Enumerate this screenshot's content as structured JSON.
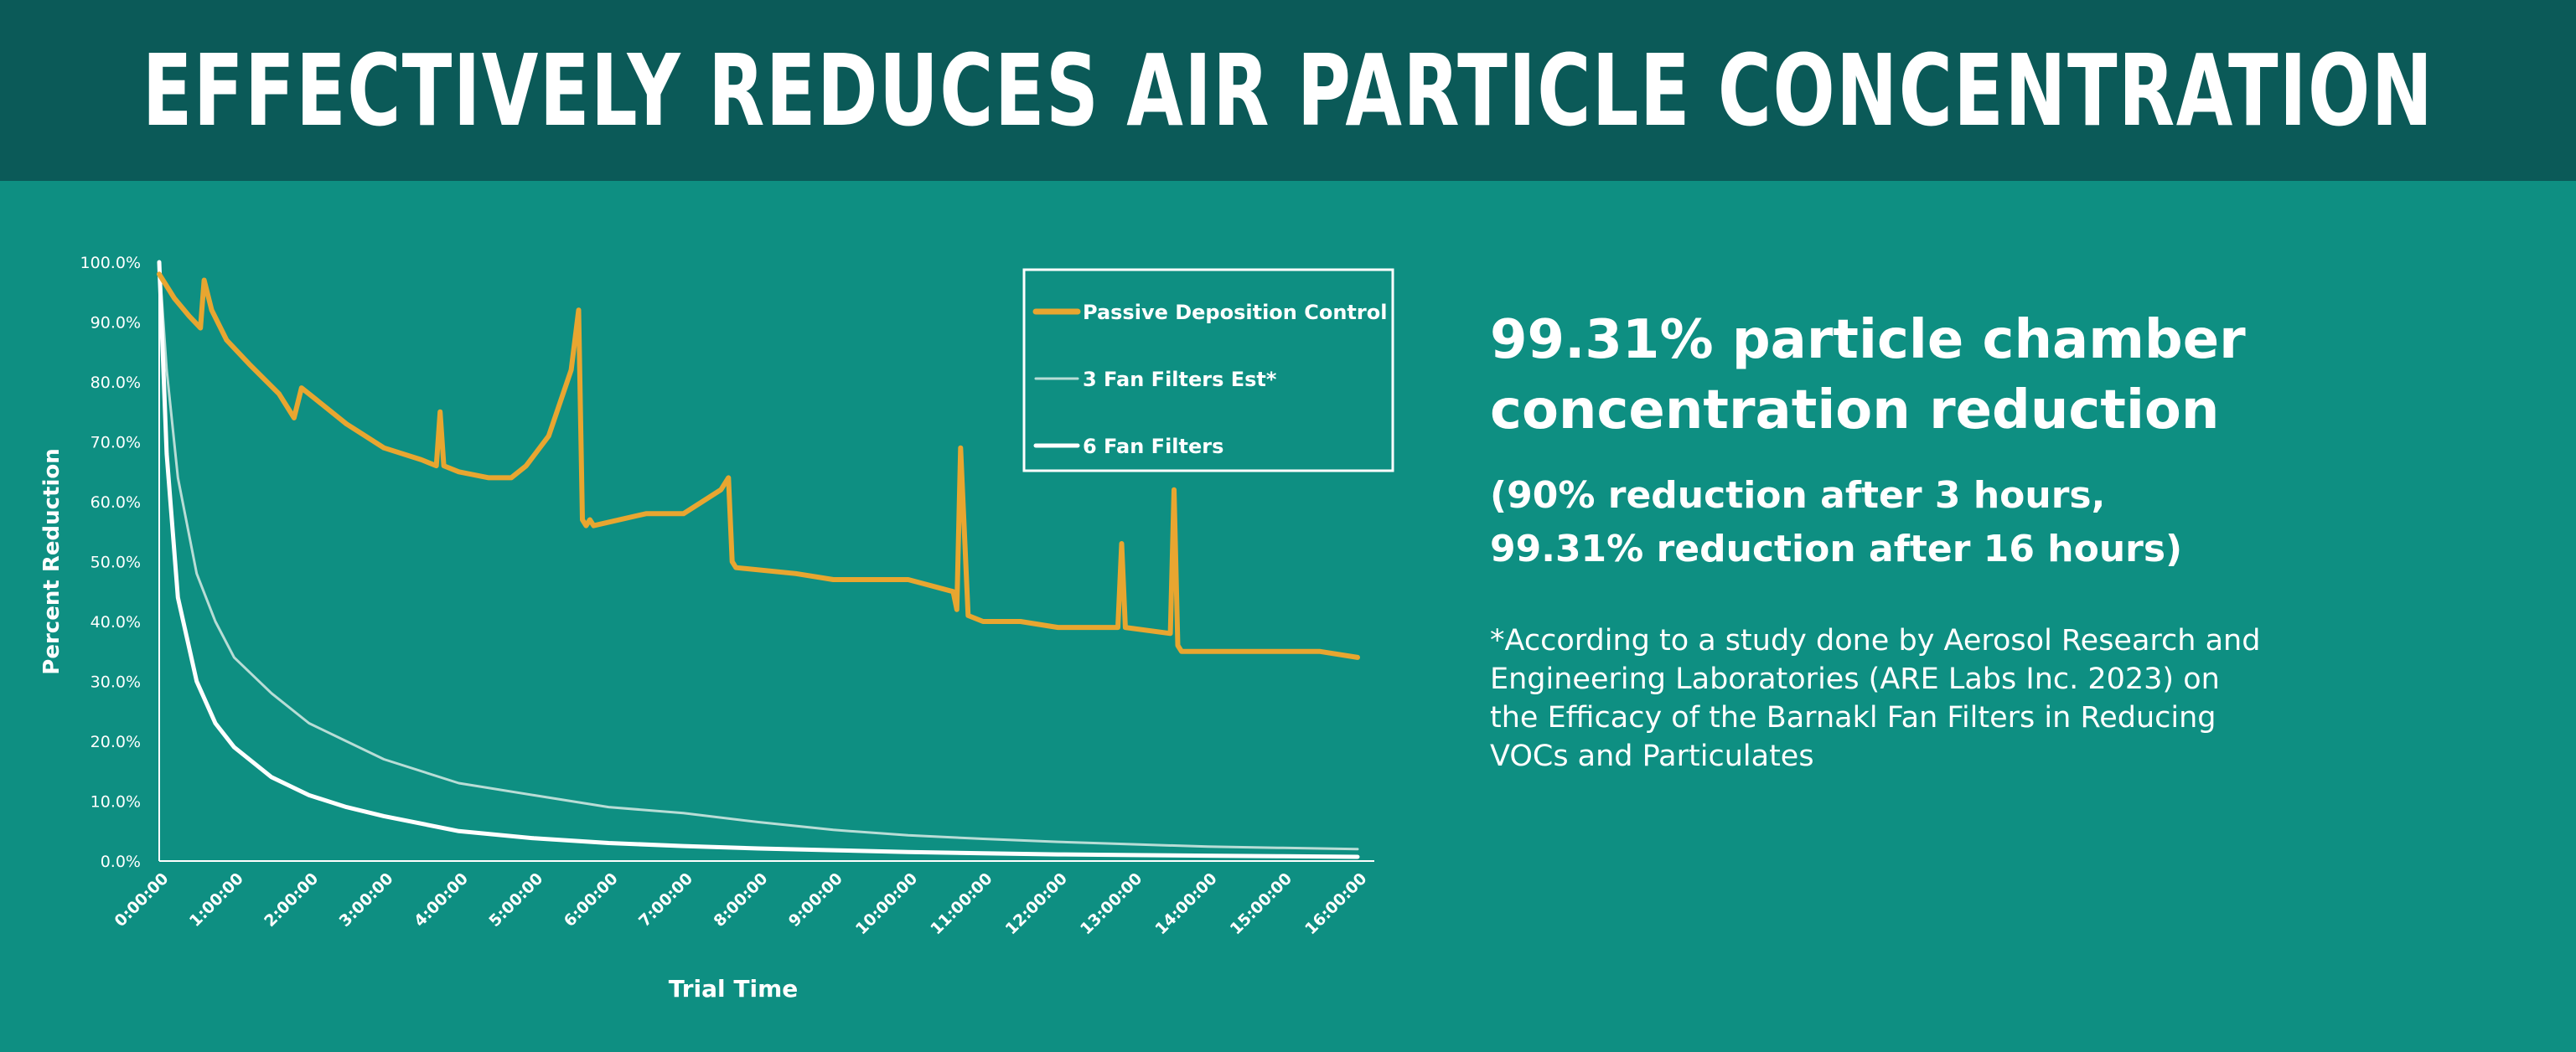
{
  "banner": {
    "title": "EFFECTIVELY REDUCES AIR PARTICLE CONCENTRATION"
  },
  "stats": {
    "headline": [
      "99.31% particle chamber",
      "concentration reduction"
    ],
    "sub": [
      "(90% reduction after 3 hours,",
      "99.31% reduction after 16 hours)"
    ],
    "note": [
      "*According to a study done by Aerosol Research and",
      "Engineering Laboratories (ARE Labs Inc. 2023) on",
      "the Efficacy of the Barnakl Fan Filters in Reducing",
      "VOCs and Particulates"
    ]
  },
  "colors": {
    "background": "#0e8f82",
    "banner": "#0b5a58",
    "passive": "#e8a630",
    "three_fan": "#b8ddd6",
    "six_fan": "#ffffff"
  },
  "chart_data": {
    "type": "line",
    "title": "",
    "xlabel": "Trial Time",
    "ylabel": "Percent Reduction",
    "ylim": [
      0,
      100
    ],
    "xlim": [
      0,
      16
    ],
    "y_ticks": [
      "0.0%",
      "10.0%",
      "20.0%",
      "30.0%",
      "40.0%",
      "50.0%",
      "60.0%",
      "70.0%",
      "80.0%",
      "90.0%",
      "100.0%"
    ],
    "x_ticks": [
      "0:00:00",
      "1:00:00",
      "2:00:00",
      "3:00:00",
      "4:00:00",
      "5:00:00",
      "6:00:00",
      "7:00:00",
      "8:00:00",
      "9:00:00",
      "10:00:00",
      "11:00:00",
      "12:00:00",
      "13:00:00",
      "14:00:00",
      "15:00:00",
      "16:00:00"
    ],
    "legend_position": "top-right",
    "series": [
      {
        "name": "Passive Deposition Control",
        "color": "#e8a630",
        "x": [
          0,
          0.2,
          0.4,
          0.55,
          0.6,
          0.7,
          0.9,
          1.2,
          1.6,
          1.8,
          1.9,
          2.1,
          2.5,
          3.0,
          3.5,
          3.7,
          3.75,
          3.8,
          4.0,
          4.4,
          4.7,
          4.9,
          5.2,
          5.5,
          5.6,
          5.65,
          5.7,
          5.75,
          5.8,
          6.5,
          7.0,
          7.5,
          7.6,
          7.65,
          7.7,
          8.5,
          9.0,
          10.0,
          10.6,
          10.65,
          10.7,
          10.8,
          11.0,
          11.5,
          12.0,
          12.5,
          12.8,
          12.85,
          12.9,
          13.5,
          13.55,
          13.6,
          13.65,
          14.0,
          14.5,
          15.0,
          15.5,
          16.0
        ],
        "y": [
          98,
          94,
          91,
          89,
          97,
          92,
          87,
          83,
          78,
          74,
          79,
          77,
          73,
          69,
          67,
          66,
          75,
          66,
          65,
          64,
          64,
          66,
          71,
          82,
          92,
          57,
          56,
          57,
          56,
          58,
          58,
          62,
          64,
          50,
          49,
          48,
          47,
          47,
          45,
          42,
          69,
          41,
          40,
          40,
          39,
          39,
          39,
          53,
          39,
          38,
          62,
          36,
          35,
          35,
          35,
          35,
          35,
          34
        ]
      },
      {
        "name": "3 Fan Filters Est*",
        "color": "#b8ddd6",
        "x": [
          0,
          0.1,
          0.25,
          0.5,
          0.75,
          1.0,
          1.5,
          2.0,
          2.5,
          3.0,
          4.0,
          5.0,
          6.0,
          7.0,
          8.0,
          9.0,
          10.0,
          11.0,
          12.0,
          13.0,
          14.0,
          15.0,
          16.0
        ],
        "y": [
          100,
          82,
          64,
          48,
          40,
          34,
          28,
          23,
          20,
          17,
          13,
          11,
          9,
          8,
          6.5,
          5.2,
          4.3,
          3.7,
          3.2,
          2.8,
          2.4,
          2.2,
          2.0
        ]
      },
      {
        "name": "6 Fan Filters",
        "color": "#ffffff",
        "x": [
          0,
          0.1,
          0.25,
          0.5,
          0.75,
          1.0,
          1.5,
          2.0,
          2.5,
          3.0,
          4.0,
          5.0,
          6.0,
          7.0,
          8.0,
          9.0,
          10.0,
          11.0,
          12.0,
          13.0,
          14.0,
          15.0,
          16.0
        ],
        "y": [
          100,
          68,
          44,
          30,
          23,
          19,
          14,
          11,
          9,
          7.5,
          5,
          3.8,
          3,
          2.5,
          2.1,
          1.8,
          1.5,
          1.3,
          1.1,
          1.0,
          0.9,
          0.8,
          0.7
        ]
      }
    ]
  }
}
